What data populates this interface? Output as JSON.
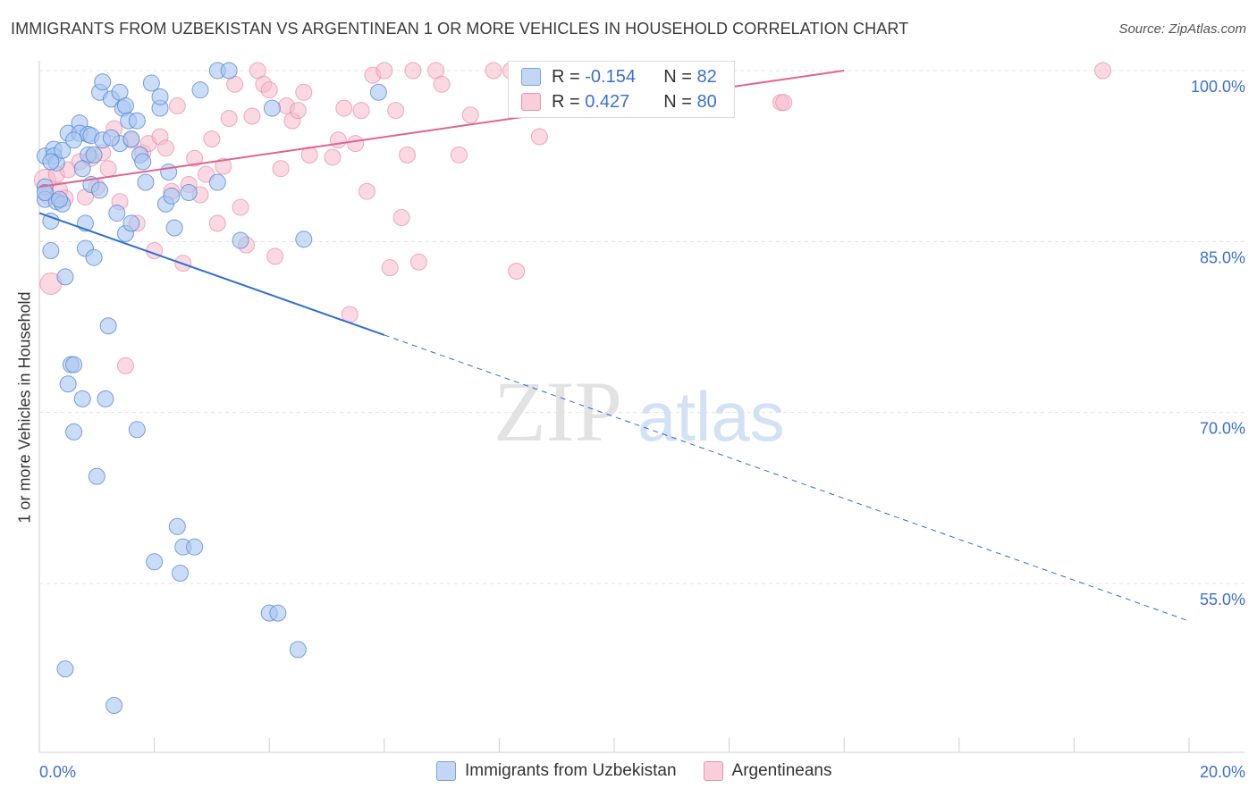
{
  "header": {
    "title": "IMMIGRANTS FROM UZBEKISTAN VS ARGENTINEAN 1 OR MORE VEHICLES IN HOUSEHOLD CORRELATION CHART",
    "source": "Source: ZipAtlas.com"
  },
  "watermark": {
    "zip": "ZIP",
    "atlas": "atlas"
  },
  "legend": {
    "series1": {
      "r_label": "R = ",
      "r_value": "-0.154",
      "n_label": "N = ",
      "n_value": "82"
    },
    "series2": {
      "r_label": "R = ",
      "r_value": "0.427",
      "n_label": "N = ",
      "n_value": "80"
    }
  },
  "colors": {
    "blue_fill": "#a9c6f0",
    "blue_stroke": "#4f82d4",
    "blue_line": "#2f6fd0",
    "pink_fill": "#f6b9cc",
    "pink_stroke": "#e98aa8",
    "pink_line": "#e0638f",
    "grid": "#e3e3e3",
    "tick_label": "#3d6fcf"
  },
  "chart_data": {
    "type": "scatter",
    "xlabel": "",
    "ylabel": "1 or more Vehicles in Household",
    "xlim": [
      0,
      20
    ],
    "ylim": [
      40,
      101
    ],
    "x_tick_labels": [
      {
        "value": 0,
        "label": "0.0%"
      },
      {
        "value": 20,
        "label": "20.0%"
      }
    ],
    "y_tick_labels": [
      {
        "value": 100,
        "label": "100.0%"
      },
      {
        "value": 85,
        "label": "85.0%"
      },
      {
        "value": 70,
        "label": "70.0%"
      },
      {
        "value": 55,
        "label": "55.0%"
      }
    ],
    "grid": true,
    "legend_position": "top-center",
    "series": [
      {
        "name": "Immigrants from Uzbekistan",
        "color": "#a9c6f0",
        "trend": {
          "x_start": 0,
          "y_start": 87.5,
          "x_solid_end": 6.0,
          "y_solid_end": 76.8,
          "x_end": 20,
          "y_end": 51.7
        },
        "points": [
          [
            0.1,
            92.5
          ],
          [
            0.1,
            89.8
          ],
          [
            0.1,
            88.7
          ],
          [
            0.2,
            86.8
          ],
          [
            0.2,
            84.2
          ],
          [
            0.25,
            93.1
          ],
          [
            0.25,
            92.5
          ],
          [
            0.3,
            88.5
          ],
          [
            0.3,
            91.9
          ],
          [
            0.4,
            88.3
          ],
          [
            0.4,
            93.0
          ],
          [
            0.45,
            81.9
          ],
          [
            0.45,
            47.5
          ],
          [
            0.5,
            94.5
          ],
          [
            0.5,
            72.5
          ],
          [
            0.55,
            74.2
          ],
          [
            0.6,
            74.2
          ],
          [
            0.6,
            68.3
          ],
          [
            0.7,
            95.4
          ],
          [
            0.7,
            94.5
          ],
          [
            0.75,
            71.2
          ],
          [
            0.8,
            86.6
          ],
          [
            0.8,
            84.4
          ],
          [
            0.85,
            92.6
          ],
          [
            0.85,
            94.4
          ],
          [
            0.9,
            94.3
          ],
          [
            0.9,
            90.0
          ],
          [
            0.95,
            83.6
          ],
          [
            1.0,
            64.4
          ],
          [
            1.05,
            89.5
          ],
          [
            1.05,
            98.1
          ],
          [
            1.1,
            99.0
          ],
          [
            1.1,
            93.9
          ],
          [
            1.15,
            71.2
          ],
          [
            1.2,
            77.6
          ],
          [
            1.25,
            97.5
          ],
          [
            1.3,
            44.3
          ],
          [
            1.35,
            87.5
          ],
          [
            1.4,
            93.6
          ],
          [
            1.4,
            98.1
          ],
          [
            1.45,
            96.7
          ],
          [
            1.5,
            85.7
          ],
          [
            1.5,
            96.9
          ],
          [
            1.55,
            95.6
          ],
          [
            1.6,
            86.6
          ],
          [
            1.7,
            95.6
          ],
          [
            1.7,
            68.5
          ],
          [
            1.75,
            92.6
          ],
          [
            1.8,
            92.0
          ],
          [
            1.85,
            90.2
          ],
          [
            1.95,
            98.9
          ],
          [
            2.0,
            56.9
          ],
          [
            2.1,
            96.7
          ],
          [
            2.1,
            97.7
          ],
          [
            2.2,
            88.3
          ],
          [
            2.25,
            91.1
          ],
          [
            2.35,
            86.2
          ],
          [
            2.4,
            60.0
          ],
          [
            2.45,
            55.9
          ],
          [
            2.5,
            58.2
          ],
          [
            2.6,
            89.3
          ],
          [
            2.7,
            58.2
          ],
          [
            2.8,
            98.3
          ],
          [
            3.1,
            90.2
          ],
          [
            3.1,
            100.0
          ],
          [
            3.3,
            100.0
          ],
          [
            3.5,
            85.1
          ],
          [
            4.0,
            52.4
          ],
          [
            4.05,
            96.7
          ],
          [
            4.15,
            52.4
          ],
          [
            4.5,
            49.2
          ],
          [
            4.6,
            85.2
          ],
          [
            5.9,
            98.1
          ],
          [
            0.1,
            89.3
          ],
          [
            0.35,
            88.7
          ],
          [
            0.6,
            93.9
          ],
          [
            0.95,
            92.6
          ],
          [
            1.25,
            94.1
          ],
          [
            1.6,
            94.0
          ],
          [
            2.3,
            89.0
          ],
          [
            0.2,
            92.0
          ],
          [
            0.75,
            91.4
          ]
        ]
      },
      {
        "name": "Argentineans",
        "color": "#f6b9cc",
        "trend": {
          "x_start": 0,
          "y_start": 89.8,
          "x_end": 14.0,
          "y_end": 100.0
        },
        "points": [
          [
            0.1,
            90.4
          ],
          [
            0.15,
            89.0
          ],
          [
            0.2,
            81.3
          ],
          [
            0.3,
            90.9
          ],
          [
            0.35,
            89.5
          ],
          [
            0.45,
            88.8
          ],
          [
            0.5,
            91.3
          ],
          [
            0.7,
            92.0
          ],
          [
            0.8,
            88.9
          ],
          [
            0.9,
            92.3
          ],
          [
            1.0,
            89.8
          ],
          [
            1.1,
            92.8
          ],
          [
            1.2,
            91.4
          ],
          [
            1.3,
            94.9
          ],
          [
            1.4,
            88.5
          ],
          [
            1.5,
            74.1
          ],
          [
            1.6,
            93.9
          ],
          [
            1.7,
            86.6
          ],
          [
            1.8,
            92.8
          ],
          [
            1.9,
            93.6
          ],
          [
            2.0,
            84.2
          ],
          [
            2.1,
            94.2
          ],
          [
            2.2,
            93.2
          ],
          [
            2.3,
            89.4
          ],
          [
            2.4,
            96.9
          ],
          [
            2.5,
            83.1
          ],
          [
            2.6,
            90.0
          ],
          [
            2.7,
            92.3
          ],
          [
            2.8,
            89.1
          ],
          [
            2.9,
            90.9
          ],
          [
            3.0,
            94.0
          ],
          [
            3.1,
            86.6
          ],
          [
            3.2,
            91.6
          ],
          [
            3.3,
            95.8
          ],
          [
            3.4,
            98.8
          ],
          [
            3.5,
            88.0
          ],
          [
            3.6,
            84.7
          ],
          [
            3.7,
            96.0
          ],
          [
            3.8,
            100.0
          ],
          [
            3.9,
            98.8
          ],
          [
            4.0,
            98.3
          ],
          [
            4.1,
            83.7
          ],
          [
            4.2,
            91.4
          ],
          [
            4.3,
            96.9
          ],
          [
            4.4,
            95.6
          ],
          [
            4.5,
            96.5
          ],
          [
            4.6,
            98.1
          ],
          [
            4.7,
            92.6
          ],
          [
            5.1,
            92.4
          ],
          [
            5.2,
            93.9
          ],
          [
            5.3,
            96.7
          ],
          [
            5.4,
            78.6
          ],
          [
            5.5,
            93.6
          ],
          [
            5.6,
            96.5
          ],
          [
            5.7,
            89.4
          ],
          [
            5.8,
            99.6
          ],
          [
            6.0,
            100.0
          ],
          [
            6.1,
            82.7
          ],
          [
            6.2,
            96.5
          ],
          [
            6.3,
            87.1
          ],
          [
            6.4,
            92.6
          ],
          [
            6.5,
            100.0
          ],
          [
            6.6,
            83.2
          ],
          [
            6.9,
            100.0
          ],
          [
            7.0,
            98.8
          ],
          [
            7.3,
            92.6
          ],
          [
            7.5,
            96.1
          ],
          [
            7.9,
            100.0
          ],
          [
            8.2,
            100.0
          ],
          [
            8.3,
            82.4
          ],
          [
            8.5,
            99.8
          ],
          [
            8.7,
            94.2
          ],
          [
            9.1,
            100.0
          ],
          [
            9.4,
            100.0
          ],
          [
            10.0,
            99.8
          ],
          [
            10.3,
            100.0
          ],
          [
            11.2,
            100.0
          ],
          [
            12.9,
            97.2
          ],
          [
            12.95,
            97.2
          ],
          [
            18.5,
            100.0
          ]
        ]
      }
    ]
  }
}
